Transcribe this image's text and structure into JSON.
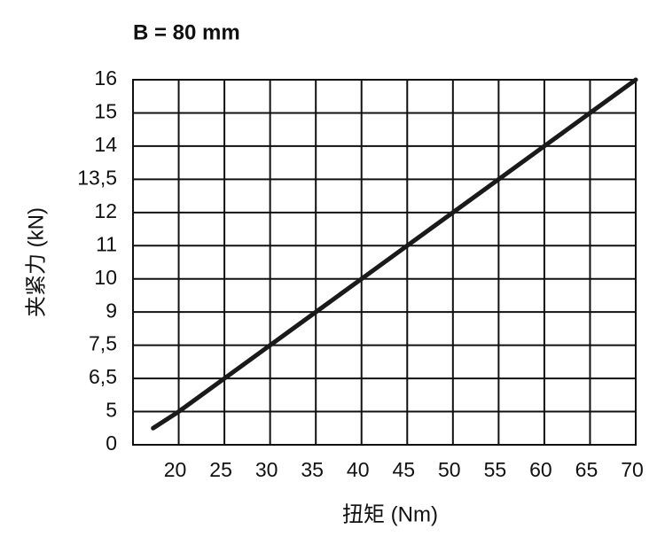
{
  "chart_data": {
    "type": "line",
    "title": "B = 80 mm",
    "x_label": "扭矩 (Nm)",
    "y_label": "夹紧力 (kN)",
    "x": [
      17.2,
      20,
      25,
      30,
      35,
      40,
      45,
      50,
      55,
      60,
      65,
      70
    ],
    "series": [
      {
        "name": null,
        "color": "#1a1a1a",
        "values": [
          2.5,
          5,
          6.5,
          7.5,
          9,
          10,
          11,
          12,
          13.5,
          14,
          15,
          16
        ]
      }
    ],
    "xlim": [
      15,
      70
    ],
    "xticks": [
      20,
      25,
      30,
      35,
      40,
      45,
      50,
      55,
      60,
      65,
      70
    ],
    "ylim": [
      0,
      16
    ],
    "yticks": [
      0,
      5,
      {
        "value": 6.5,
        "label": "6,5"
      },
      {
        "value": 7.5,
        "label": "7,5"
      },
      9,
      10,
      11,
      12,
      {
        "value": 13.5,
        "label": "13,5"
      },
      14,
      15,
      16
    ],
    "grid": true
  }
}
